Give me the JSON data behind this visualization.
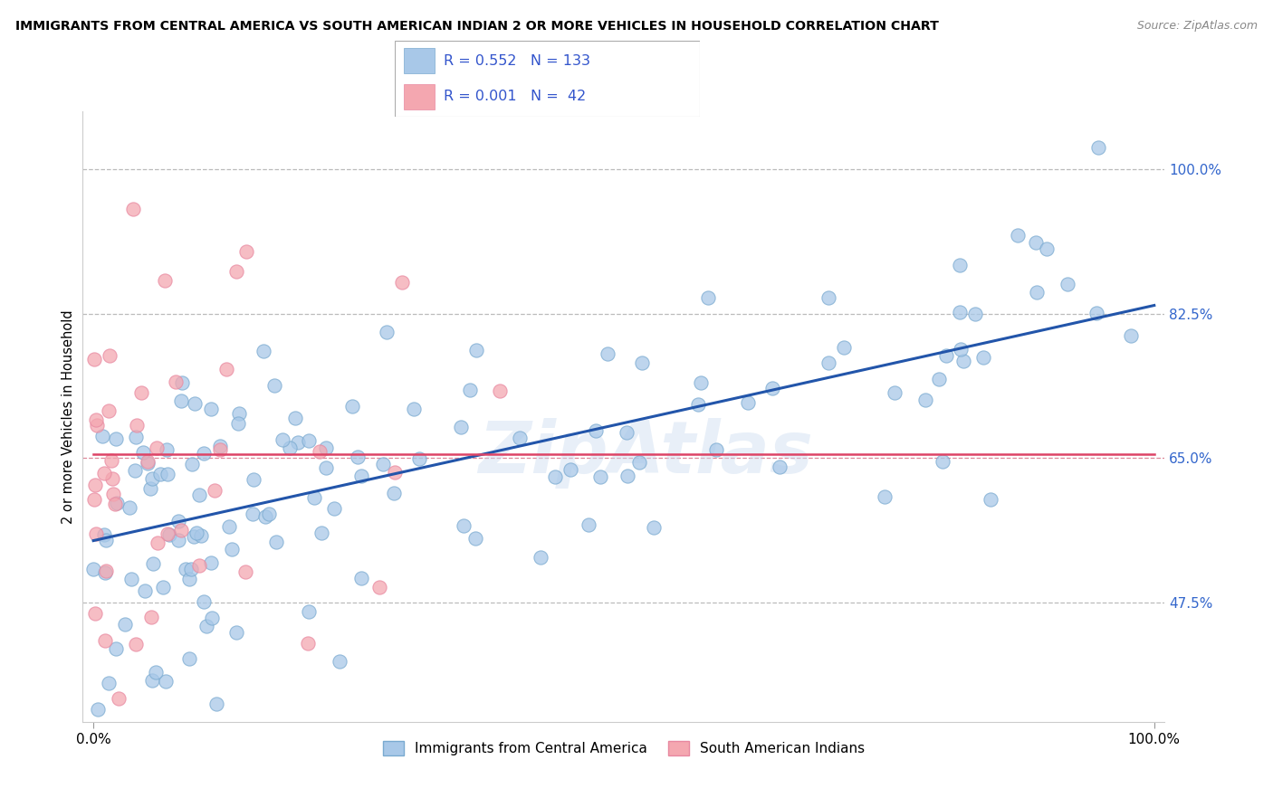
{
  "title": "IMMIGRANTS FROM CENTRAL AMERICA VS SOUTH AMERICAN INDIAN 2 OR MORE VEHICLES IN HOUSEHOLD CORRELATION CHART",
  "source": "Source: ZipAtlas.com",
  "ylabel": "2 or more Vehicles in Household",
  "y_tick_vals": [
    47.5,
    65.0,
    82.5,
    100.0
  ],
  "x_range": [
    0,
    100
  ],
  "y_range": [
    33,
    107
  ],
  "watermark": "ZipAtlas",
  "blue_color": "#a8c8e8",
  "pink_color": "#f4a7b0",
  "blue_line_color": "#2255aa",
  "pink_line_color": "#dd4466",
  "scatter_blue_color": "#a8c8e8",
  "scatter_pink_color": "#f4a7b0",
  "blue_line_y_start": 55.0,
  "blue_line_y_end": 83.5,
  "pink_line_y": 65.5,
  "dashed_lines_gray": [
    47.5,
    82.5,
    100.0
  ],
  "dashed_line_pink": 65.0,
  "legend_fontsize": 12,
  "title_fontsize": 10,
  "blue_seed": 7,
  "pink_seed": 13,
  "marker_size": 120
}
